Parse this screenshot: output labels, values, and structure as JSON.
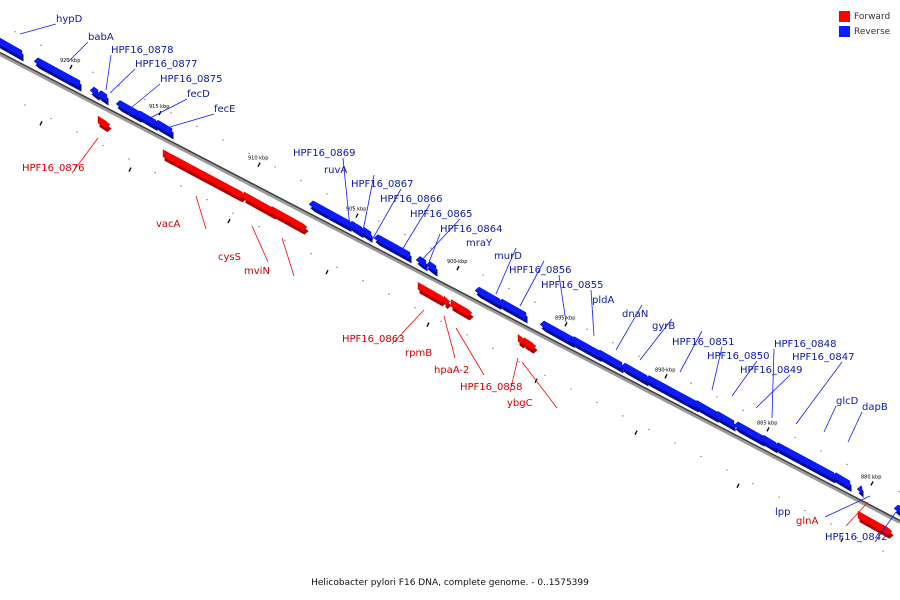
{
  "legend": {
    "forward_label": "Forward",
    "reverse_label": "Reverse",
    "forward_color": "#ff0000",
    "reverse_color": "#0b1bff"
  },
  "caption": "Helicobacter pylori F16 DNA, complete genome. - 0..1575399",
  "ticks": [
    "920 kbp",
    "915 kbp",
    "910 kbp",
    "905 kbp",
    "900 kbp",
    "895 kbp",
    "890 kbp",
    "885 kbp",
    "880 kbp"
  ],
  "genes": [
    {
      "name": "hypD",
      "strand": "reverse"
    },
    {
      "name": "babA",
      "strand": "reverse"
    },
    {
      "name": "HPF16_0878",
      "strand": "reverse"
    },
    {
      "name": "HPF16_0877",
      "strand": "reverse"
    },
    {
      "name": "HPF16_0876",
      "strand": "forward"
    },
    {
      "name": "HPF16_0875",
      "strand": "reverse"
    },
    {
      "name": "fecD",
      "strand": "reverse"
    },
    {
      "name": "fecE",
      "strand": "reverse"
    },
    {
      "name": "vacA",
      "strand": "forward"
    },
    {
      "name": "cysS",
      "strand": "forward"
    },
    {
      "name": "mviN",
      "strand": "forward"
    },
    {
      "name": "HPF16_0869",
      "strand": "reverse"
    },
    {
      "name": "ruvA",
      "strand": "reverse"
    },
    {
      "name": "HPF16_0867",
      "strand": "reverse"
    },
    {
      "name": "HPF16_0866",
      "strand": "reverse"
    },
    {
      "name": "HPF16_0865",
      "strand": "reverse"
    },
    {
      "name": "HPF16_0864",
      "strand": "reverse"
    },
    {
      "name": "HPF16_0863",
      "strand": "forward"
    },
    {
      "name": "rpmB",
      "strand": "forward"
    },
    {
      "name": "hpaA-2",
      "strand": "forward"
    },
    {
      "name": "mraY",
      "strand": "reverse"
    },
    {
      "name": "murD",
      "strand": "reverse"
    },
    {
      "name": "HPF16_0858",
      "strand": "forward"
    },
    {
      "name": "ybgC",
      "strand": "forward"
    },
    {
      "name": "HPF16_0856",
      "strand": "reverse"
    },
    {
      "name": "HPF16_0855",
      "strand": "reverse"
    },
    {
      "name": "pldA",
      "strand": "reverse"
    },
    {
      "name": "dnaN",
      "strand": "reverse"
    },
    {
      "name": "gyrB",
      "strand": "reverse"
    },
    {
      "name": "HPF16_0851",
      "strand": "reverse"
    },
    {
      "name": "HPF16_0850",
      "strand": "reverse"
    },
    {
      "name": "HPF16_0849",
      "strand": "reverse"
    },
    {
      "name": "HPF16_0848",
      "strand": "reverse"
    },
    {
      "name": "HPF16_0847",
      "strand": "reverse"
    },
    {
      "name": "glcD",
      "strand": "reverse"
    },
    {
      "name": "dapB",
      "strand": "reverse"
    },
    {
      "name": "lpp",
      "strand": "reverse"
    },
    {
      "name": "glnA",
      "strand": "forward"
    },
    {
      "name": "HPF16_0842",
      "strand": "reverse"
    }
  ]
}
